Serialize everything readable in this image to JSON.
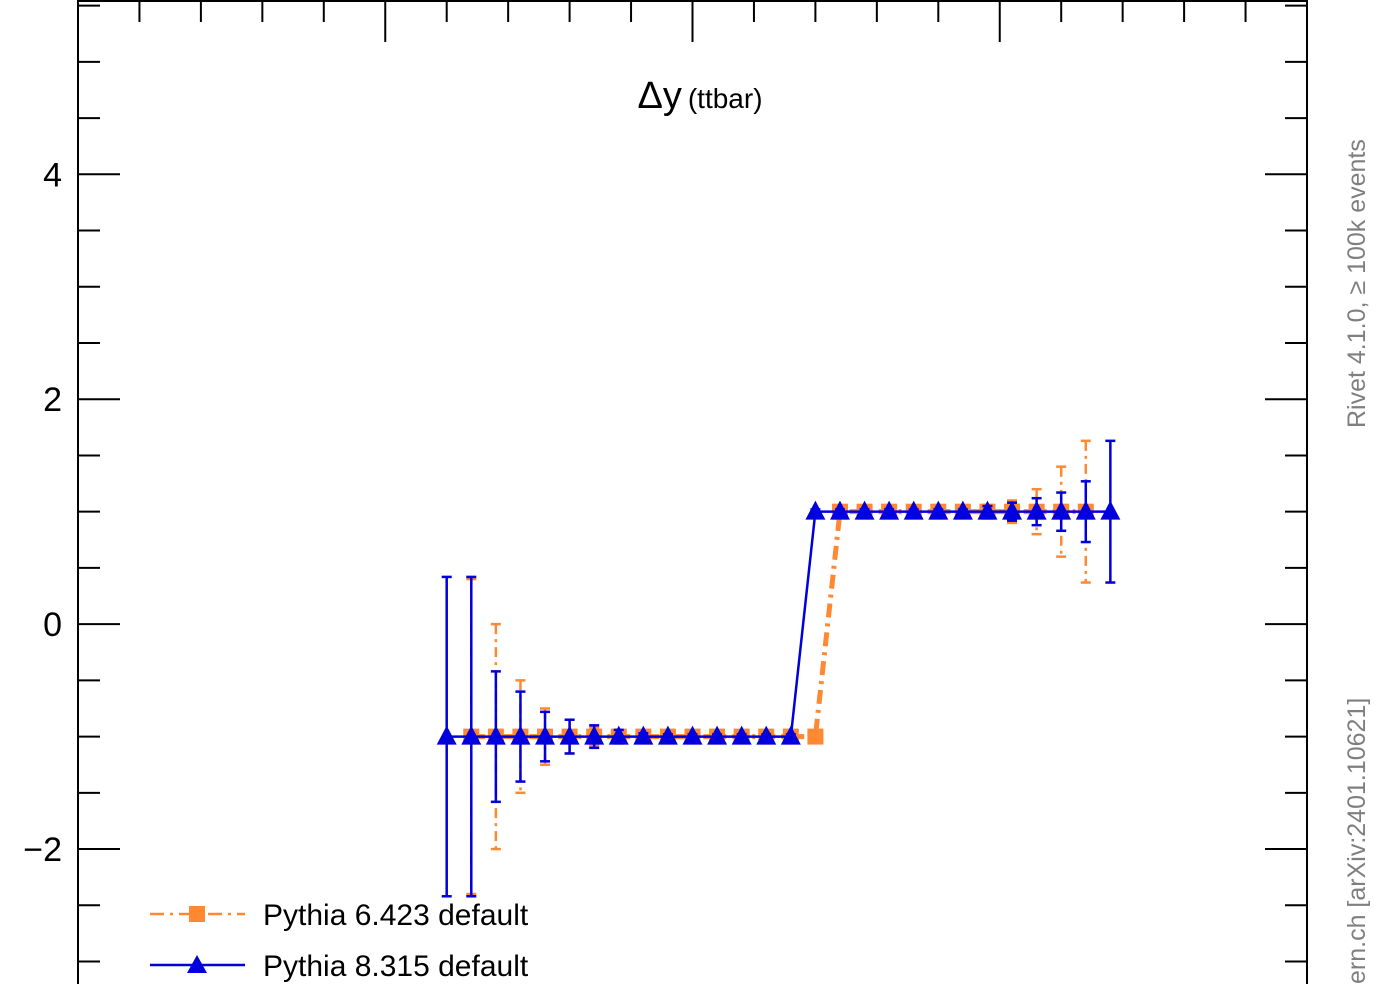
{
  "chart_data": {
    "type": "line",
    "title": "",
    "xlabel": "",
    "ylabel": "",
    "ylim": [
      -3.2,
      5.55
    ],
    "xlim": [
      -1.0,
      1.0
    ],
    "grid": false,
    "legend_position": "bottom-left",
    "yticks": [
      -2,
      0,
      2,
      4
    ],
    "ytick_labels": [
      "−2",
      "0",
      "2",
      "4"
    ],
    "annotation": {
      "main": "Δy",
      "sub": "(ttbar)"
    },
    "side_text": {
      "top": "Rivet 4.1.0, ≥ 100k events",
      "bottom": "ern.ch [arXiv:2401.10621]"
    },
    "x": [
      -0.4,
      -0.36,
      -0.32,
      -0.28,
      -0.24,
      -0.2,
      -0.16,
      -0.12,
      -0.08,
      -0.04,
      0.0,
      0.04,
      0.08,
      0.12,
      0.16,
      0.2,
      0.24,
      0.28,
      0.32,
      0.36,
      0.4,
      0.44,
      0.48,
      0.52,
      0.56,
      0.6,
      0.64,
      0.68
    ],
    "series": [
      {
        "name": "Pythia 6.423 default",
        "color": "#ff8833",
        "line_style": "dash-dot",
        "marker": "square",
        "x": [
          -0.36,
          -0.32,
          -0.28,
          -0.24,
          -0.2,
          -0.16,
          -0.12,
          -0.08,
          -0.04,
          0.0,
          0.04,
          0.08,
          0.12,
          0.16,
          0.2,
          0.24,
          0.28,
          0.32,
          0.36,
          0.4,
          0.44,
          0.48,
          0.52,
          0.56,
          0.6,
          0.64
        ],
        "y": [
          -1,
          -1,
          -1,
          -1,
          -1,
          -1,
          -1,
          -1,
          -1,
          -1,
          -1,
          -1,
          -1,
          -1,
          -1,
          1,
          1,
          1,
          1,
          1,
          1,
          1,
          1,
          1,
          1,
          1
        ],
        "err": [
          1.4,
          1.0,
          0.5,
          0.25,
          0.15,
          0.08,
          0.05,
          0.03,
          0.02,
          0.02,
          0.02,
          0.02,
          0.02,
          0.02,
          0.02,
          0.02,
          0.02,
          0.02,
          0.02,
          0.02,
          0.03,
          0.06,
          0.1,
          0.2,
          0.4,
          0.63
        ]
      },
      {
        "name": "Pythia 8.315 default",
        "color": "#0000dd",
        "line_style": "solid",
        "marker": "triangle",
        "x": [
          -0.4,
          -0.36,
          -0.32,
          -0.28,
          -0.24,
          -0.2,
          -0.16,
          -0.12,
          -0.08,
          -0.04,
          0.0,
          0.04,
          0.08,
          0.12,
          0.16,
          0.2,
          0.24,
          0.28,
          0.32,
          0.36,
          0.4,
          0.44,
          0.48,
          0.52,
          0.56,
          0.6,
          0.64,
          0.68
        ],
        "y": [
          -1,
          -1,
          -1,
          -1,
          -1,
          -1,
          -1,
          -1,
          -1,
          -1,
          -1,
          -1,
          -1,
          -1,
          -1,
          1,
          1,
          1,
          1,
          1,
          1,
          1,
          1,
          1,
          1,
          1,
          1,
          1
        ],
        "err": [
          1.42,
          1.42,
          0.58,
          0.4,
          0.22,
          0.15,
          0.1,
          0.06,
          0.03,
          0.02,
          0.02,
          0.02,
          0.02,
          0.02,
          0.02,
          0.02,
          0.02,
          0.02,
          0.02,
          0.02,
          0.02,
          0.02,
          0.05,
          0.08,
          0.12,
          0.17,
          0.27,
          0.63
        ]
      }
    ]
  }
}
